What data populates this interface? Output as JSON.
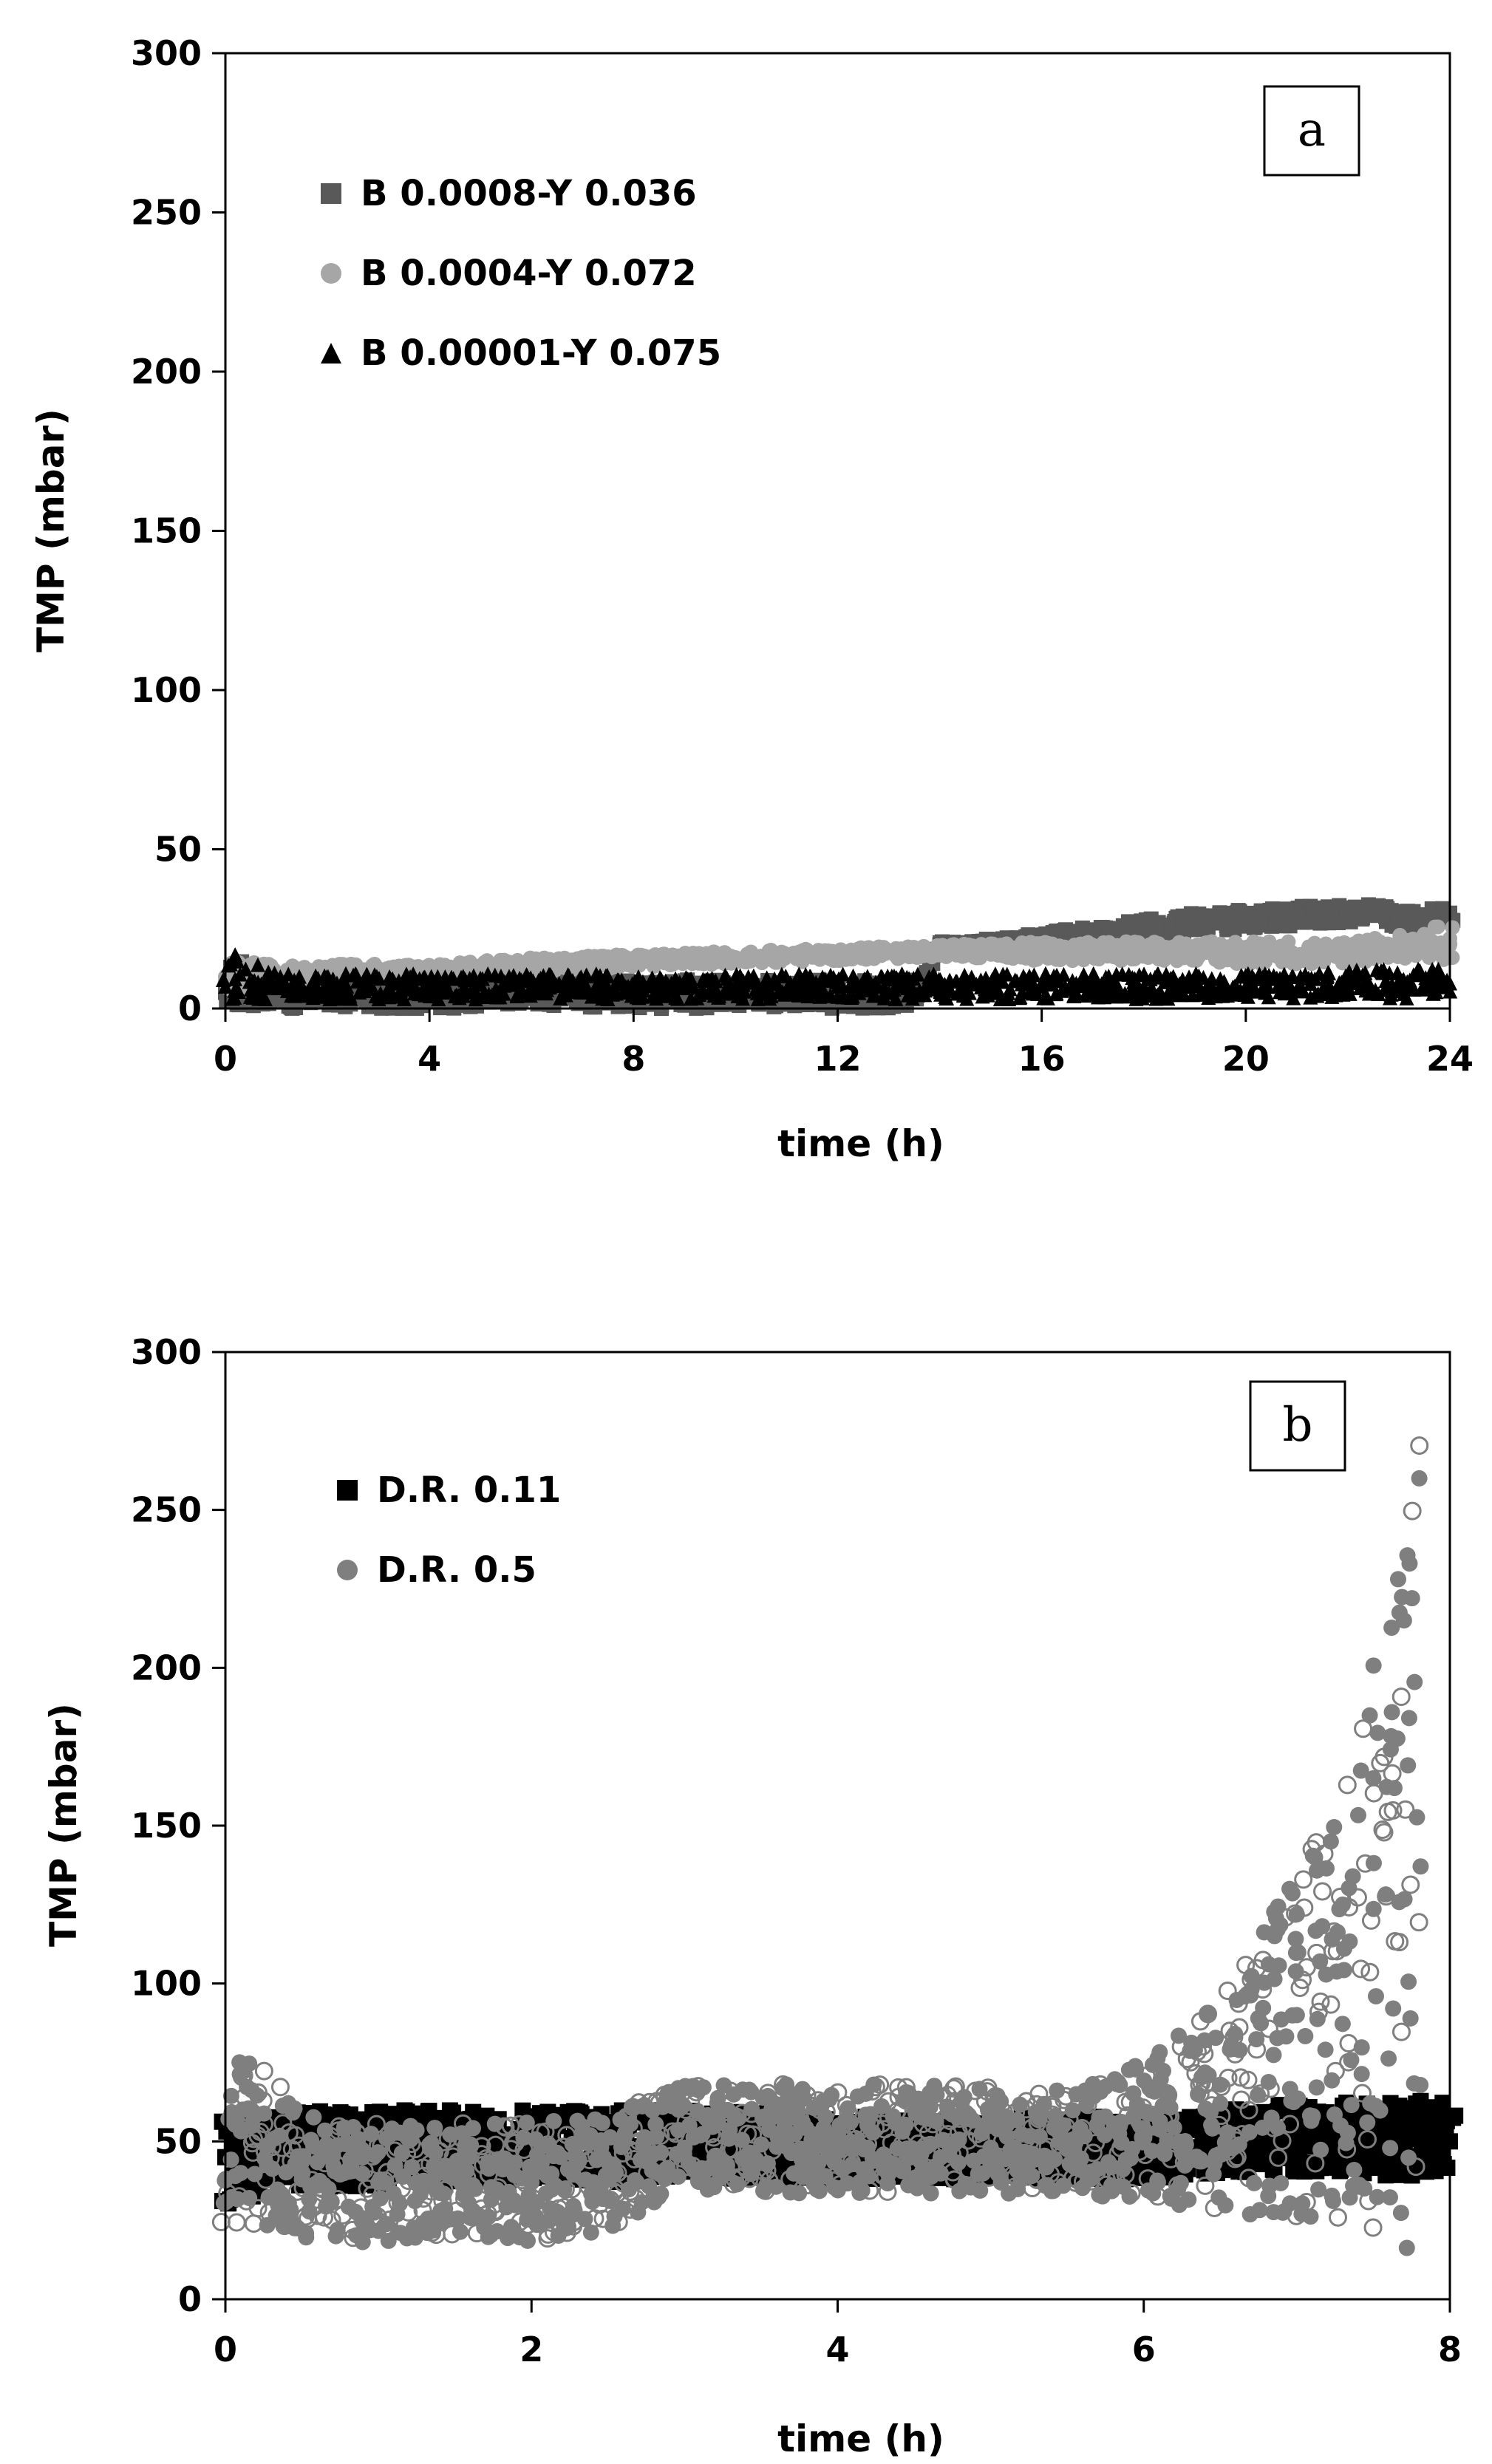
{
  "chart_data": [
    {
      "type": "scatter",
      "panel_label": "a",
      "title": "",
      "xlabel": "time (h)",
      "ylabel": "TMP (mbar)",
      "xlim": [
        0,
        24
      ],
      "ylim": [
        0,
        300
      ],
      "xticks": [
        0,
        4,
        8,
        12,
        16,
        20,
        24
      ],
      "yticks": [
        0,
        50,
        100,
        150,
        200,
        250,
        300
      ],
      "grid": false,
      "legend_position": "top-left",
      "series": [
        {
          "name": "B 0.0008-Y 0.036",
          "marker": "square",
          "color": "#595959",
          "x": [
            0,
            0.1,
            1,
            2,
            4,
            6,
            8,
            10,
            12,
            13.5,
            14,
            15,
            16,
            17,
            18,
            19,
            20,
            21,
            22,
            22.5,
            23,
            24
          ],
          "y": [
            5,
            13,
            5,
            5,
            5,
            5,
            5,
            5,
            6,
            6,
            20,
            21,
            22,
            24,
            25,
            27,
            28,
            29,
            31,
            32,
            28,
            30
          ],
          "band_low": [
            0,
            0,
            0,
            0,
            0,
            0,
            0,
            0,
            0,
            0,
            19,
            20,
            21,
            22,
            23,
            24,
            25,
            26,
            27,
            28,
            25,
            26
          ],
          "band_high": [
            10,
            18,
            9,
            9,
            9,
            9,
            9,
            9,
            9,
            9,
            21,
            22,
            24,
            26,
            28,
            30,
            31,
            32,
            33,
            34,
            31,
            32
          ]
        },
        {
          "name": "B 0.0004-Y 0.072",
          "marker": "circle",
          "color": "#a6a6a6",
          "x": [
            0,
            1,
            2,
            4,
            6,
            8,
            10,
            12,
            14,
            16,
            18,
            20,
            22,
            23,
            24
          ],
          "y": [
            10,
            11,
            12,
            12,
            13,
            15,
            16,
            17,
            18,
            18,
            18,
            18,
            18,
            19,
            22
          ],
          "band_low": [
            6,
            8,
            9,
            9,
            11,
            13,
            14,
            15,
            16,
            15,
            15,
            14,
            14,
            15,
            15
          ],
          "band_high": [
            15,
            14,
            14,
            14,
            16,
            17,
            18,
            19,
            20,
            21,
            21,
            21,
            21,
            23,
            27
          ]
        },
        {
          "name": "B 0.00001-Y 0.075",
          "marker": "triangle",
          "color": "#000000",
          "x": [
            0,
            0.1,
            1,
            2,
            4,
            6,
            8,
            10,
            12,
            14,
            16,
            18,
            20,
            22,
            24
          ],
          "y": [
            7,
            14,
            7,
            7,
            7,
            7,
            7,
            7,
            7,
            7,
            7,
            7,
            7,
            7,
            8
          ],
          "band_low": [
            2,
            3,
            3,
            3,
            3,
            3,
            3,
            3,
            3,
            3,
            3,
            3,
            3,
            3,
            3
          ],
          "band_high": [
            13,
            18,
            11,
            11,
            11,
            11,
            11,
            11,
            11,
            11,
            11,
            11,
            11,
            12,
            13
          ]
        }
      ]
    },
    {
      "type": "scatter",
      "panel_label": "b",
      "title": "",
      "xlabel": "time (h)",
      "ylabel": "TMP (mbar)",
      "xlim": [
        0,
        8
      ],
      "ylim": [
        0,
        300
      ],
      "xticks": [
        0,
        2,
        4,
        6,
        8
      ],
      "yticks": [
        0,
        50,
        100,
        150,
        200,
        250,
        300
      ],
      "grid": false,
      "legend_position": "top-left",
      "series": [
        {
          "name": "D.R. 0.11",
          "marker": "square",
          "color": "#000000",
          "x": [
            0,
            0.5,
            1,
            1.5,
            2,
            2.5,
            3,
            4,
            5,
            6,
            6.5,
            7,
            7.5,
            8
          ],
          "y": [
            45,
            47,
            48,
            48,
            48,
            49,
            48,
            48,
            48,
            48,
            50,
            50,
            50,
            50
          ],
          "band_low": [
            30,
            35,
            36,
            36,
            36,
            37,
            38,
            38,
            38,
            38,
            40,
            40,
            39,
            38
          ],
          "band_high": [
            58,
            60,
            60,
            60,
            60,
            60,
            60,
            58,
            58,
            58,
            60,
            62,
            63,
            63
          ]
        },
        {
          "name": "D.R. 0.5",
          "marker": "circle",
          "color": "#7f7f7f",
          "x": [
            0,
            0.1,
            0.5,
            1,
            2,
            2.5,
            2.8,
            3,
            4,
            5,
            5.5,
            6,
            6.5,
            7,
            7.3,
            7.5,
            7.7,
            7.8
          ],
          "y": [
            38,
            40,
            38,
            37,
            37,
            38,
            46,
            48,
            48,
            48,
            48,
            52,
            62,
            90,
            125,
            165,
            215,
            260
          ],
          "band_low": [
            20,
            25,
            18,
            18,
            18,
            22,
            30,
            35,
            33,
            33,
            33,
            30,
            28,
            25,
            20,
            18,
            15,
            15
          ],
          "band_high": [
            60,
            85,
            58,
            56,
            56,
            58,
            65,
            68,
            68,
            68,
            66,
            75,
            95,
            135,
            170,
            205,
            240,
            278
          ]
        }
      ]
    }
  ]
}
